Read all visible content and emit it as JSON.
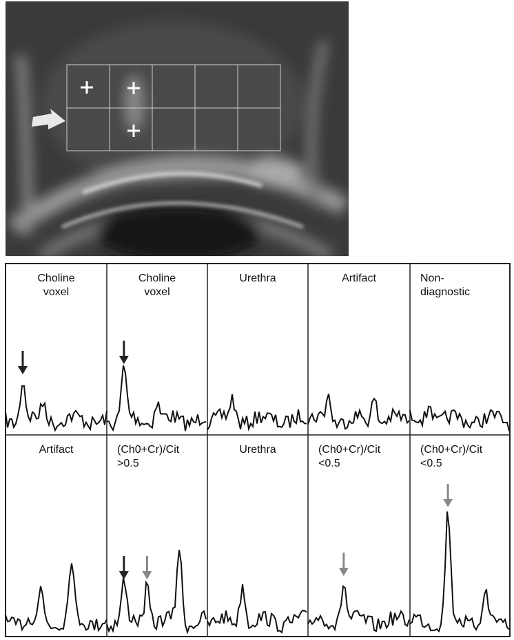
{
  "panels": [
    [
      {
        "lines": [
          "Choline",
          "voxel"
        ]
      },
      {
        "lines": [
          "Choline",
          "voxel"
        ]
      },
      {
        "lines": [
          "Urethra"
        ]
      },
      {
        "lines": [
          "Artifact"
        ]
      },
      {
        "lines": [
          "Non-",
          "diagnostic"
        ]
      }
    ],
    [
      {
        "lines": [
          "Artifact"
        ]
      },
      {
        "lines": [
          "(Ch0+Cr)/Cit",
          ">0.5"
        ]
      },
      {
        "lines": [
          "Urethra"
        ]
      },
      {
        "lines": [
          "(Ch0+Cr)/Cit",
          "<0.5"
        ]
      },
      {
        "lines": [
          "(Ch0+Cr)/Cit",
          "<0.5"
        ]
      }
    ]
  ]
}
